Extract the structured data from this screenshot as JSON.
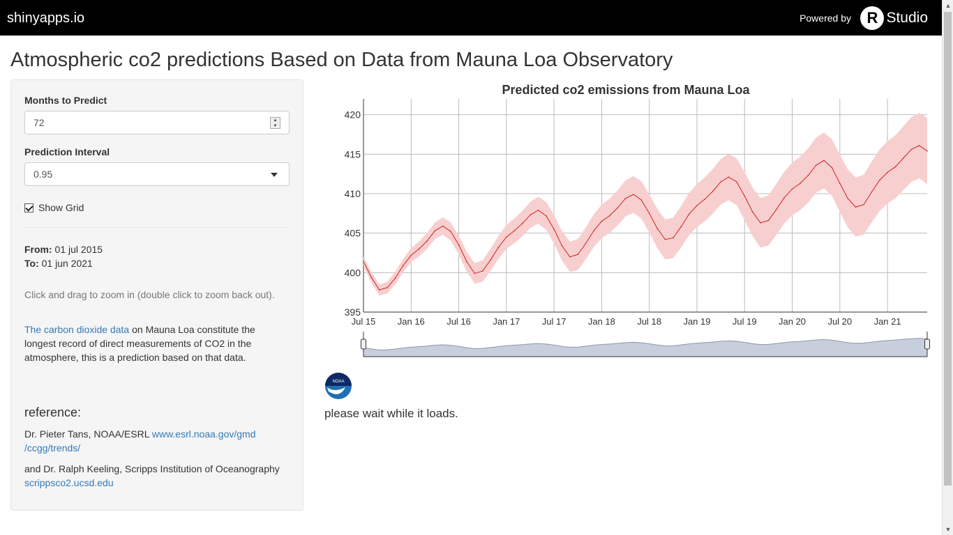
{
  "navbar": {
    "brand": "shinyapps.io",
    "powered_by": "Powered by",
    "logo_r": "R",
    "logo_studio": "Studio"
  },
  "page": {
    "title": "Atmospheric co2 predictions Based on Data from Mauna Loa Observatory"
  },
  "sidebar": {
    "months_label": "Months to Predict",
    "months_value": "72",
    "interval_label": "Prediction Interval",
    "interval_value": "0.95",
    "show_grid_label": "Show Grid",
    "show_grid_checked": true,
    "from_label": "From:",
    "from_value": " 01 jul 2015",
    "to_label": "To:",
    "to_value": " 01 jun 2021",
    "zoom_hint": "Click and drag to zoom in (double click to zoom back out).",
    "desc_link": "The carbon dioxide data",
    "desc_line1": " on Mauna Loa constitute the",
    "desc_line2": "longest record of direct measurements of CO2 in the",
    "desc_line3": "atmosphere, this is a prediction based on that data.",
    "reference_heading": "reference:",
    "ref1_text": "Dr. Pieter Tans, NOAA/ESRL ",
    "ref1_link_a": "www.esrl.noaa.gov/gmd",
    "ref1_link_b": "/ccgg/trends/",
    "ref2_text": "and Dr. Ralph Keeling, Scripps Institution of Oceanography",
    "ref2_link": "scrippsco2.ucsd.edu"
  },
  "main": {
    "noaa_logo_text": "NOAA",
    "loading_text": "please wait while it loads."
  },
  "colors": {
    "line": "#cc2222",
    "band": "#f8cfcf",
    "navbar": "#000000",
    "link": "#337ab7"
  },
  "chart_data": {
    "type": "line",
    "title": "Predicted co2 emissions from Mauna Loa",
    "xlabel": "",
    "ylabel": "",
    "ylim": [
      395,
      422
    ],
    "yticks": [
      395,
      400,
      405,
      410,
      415,
      420
    ],
    "xtick_labels": [
      "Jul 15",
      "Jan 16",
      "Jul 16",
      "Jan 17",
      "Jul 17",
      "Jan 18",
      "Jul 18",
      "Jan 19",
      "Jul 19",
      "Jan 20",
      "Jul 20",
      "Jan 21"
    ],
    "grid": true,
    "range_selector": true,
    "x_start": "2015-07",
    "x_end": "2021-06",
    "series": [
      {
        "values": [
          401.4,
          399.4,
          397.8,
          398.1,
          399.3,
          400.9,
          402.2,
          403.0,
          404.0,
          405.3,
          405.9,
          405.2,
          403.5,
          401.4,
          399.9,
          400.2,
          401.6,
          403.2,
          404.5,
          405.3,
          406.2,
          407.3,
          407.9,
          407.2,
          405.5,
          403.4,
          402.0,
          402.3,
          403.7,
          405.3,
          406.5,
          407.2,
          408.2,
          409.4,
          409.9,
          409.2,
          407.5,
          405.6,
          404.2,
          404.4,
          405.8,
          407.4,
          408.5,
          409.3,
          410.3,
          411.5,
          412.1,
          411.5,
          409.7,
          407.7,
          406.3,
          406.6,
          408.0,
          409.5,
          410.6,
          411.3,
          412.3,
          413.6,
          414.2,
          413.3,
          411.3,
          409.4,
          408.3,
          408.6,
          410.2,
          411.7,
          412.7,
          413.4,
          414.5,
          415.6,
          416.1,
          415.4
        ]
      }
    ],
    "band_halfwidth_start": 0.6,
    "band_halfwidth_end": 4.2
  }
}
